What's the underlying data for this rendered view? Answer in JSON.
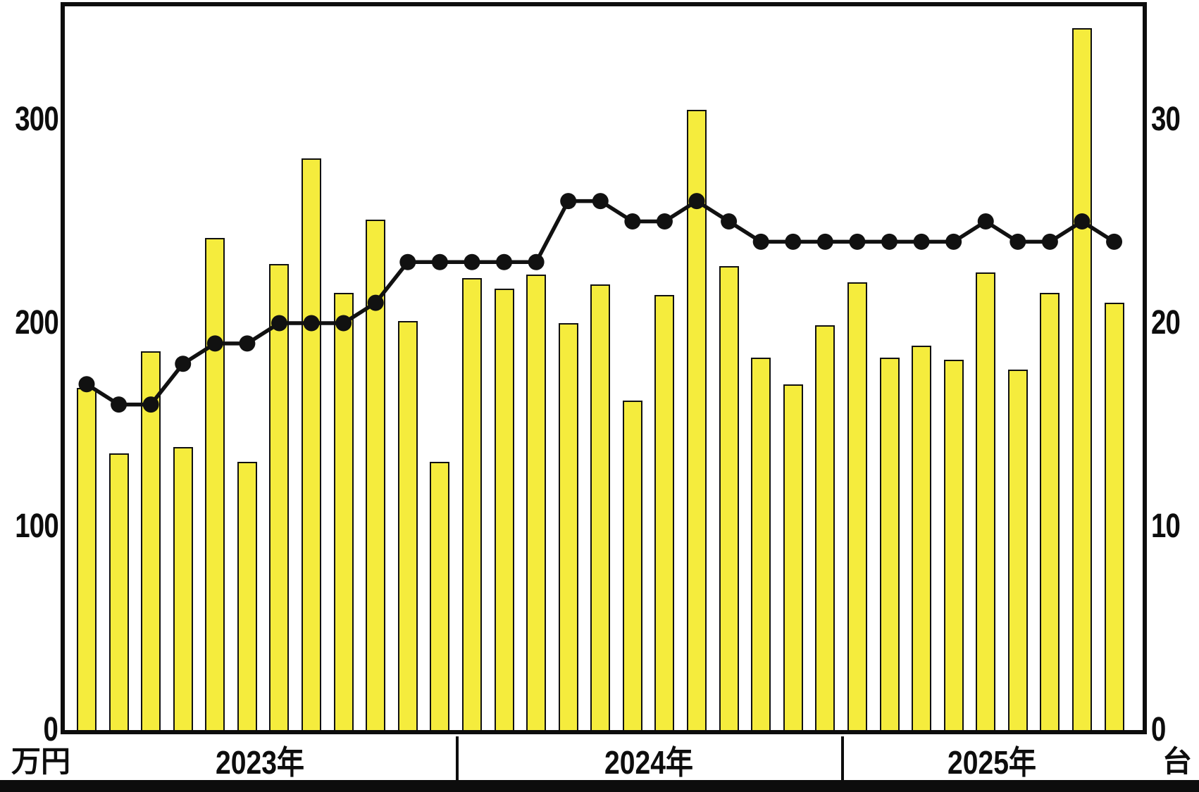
{
  "chart_data": {
    "type": "bar+line",
    "title": "",
    "left_axis": {
      "unit_label": "万円",
      "ticks": [
        0,
        100,
        200,
        300
      ],
      "max": 355
    },
    "right_axis": {
      "unit_label": "台",
      "ticks": [
        0,
        10,
        20,
        30
      ],
      "max": 35.5
    },
    "x_groups": [
      {
        "label": "2023年",
        "months": 12
      },
      {
        "label": "2024年",
        "months": 12
      },
      {
        "label": "2025年",
        "months": 9
      }
    ],
    "series": [
      {
        "name": "bar-series-man-yen",
        "type": "bar",
        "axis": "left",
        "values": [
          168,
          136,
          186,
          139,
          242,
          132,
          229,
          281,
          215,
          251,
          201,
          132,
          222,
          217,
          224,
          200,
          219,
          162,
          214,
          305,
          228,
          183,
          170,
          199,
          220,
          183,
          189,
          182,
          225,
          177,
          215,
          345,
          210
        ]
      },
      {
        "name": "line-series-dai",
        "type": "line",
        "axis": "right",
        "values": [
          17,
          16,
          16,
          18,
          19,
          19,
          20,
          20,
          20,
          21,
          23,
          23,
          23,
          23,
          23,
          26,
          26,
          25,
          25,
          26,
          25,
          24,
          24,
          24,
          24,
          24,
          24,
          24,
          25,
          24,
          24,
          25,
          24
        ]
      }
    ],
    "legend": "none",
    "grid": "off",
    "colors": {
      "bar_fill": "#f5ec3d",
      "bar_border": "#111111",
      "line": "#111111",
      "marker": "#111111",
      "frame": "#0d0d0d",
      "background": "#ffffff"
    }
  }
}
